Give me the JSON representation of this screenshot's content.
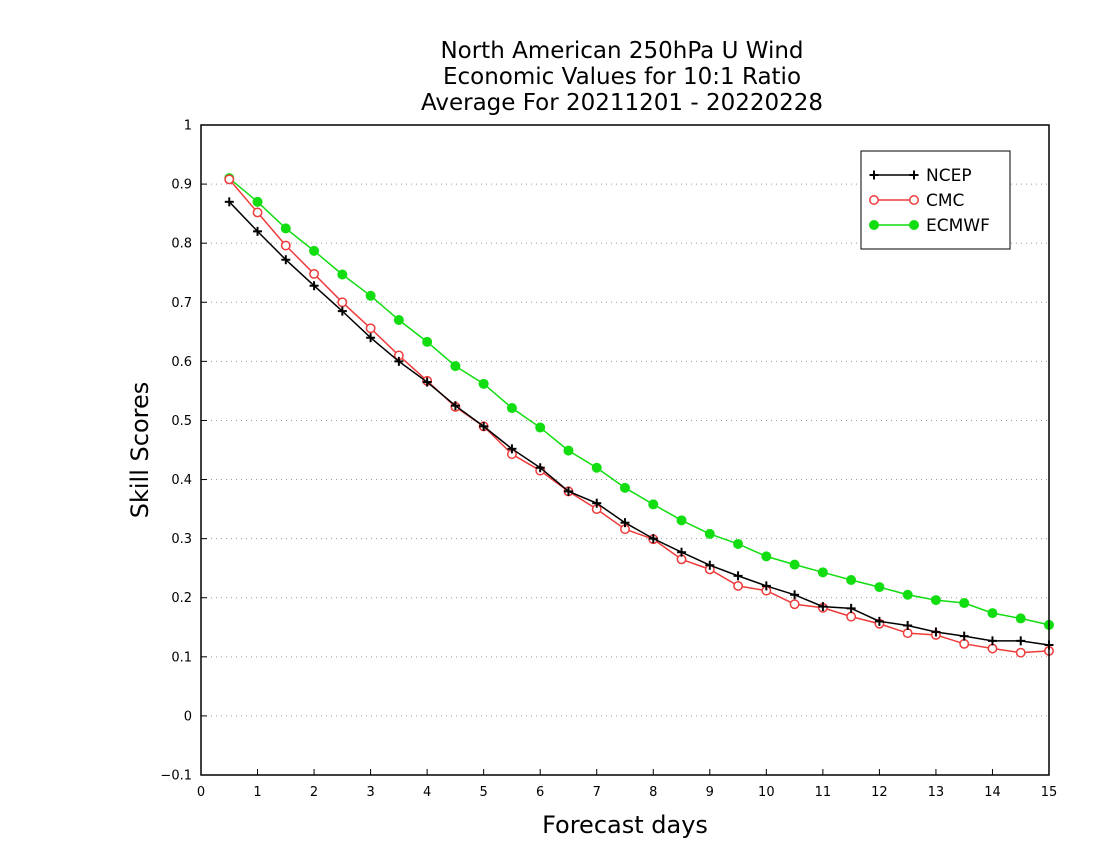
{
  "chart_data": {
    "type": "line",
    "title_lines": [
      "North American 250hPa U Wind",
      "Economic Values for 10:1 Ratio",
      "Average For 20211201 - 20220228"
    ],
    "xlabel": "Forecast days",
    "ylabel": "Skill Scores",
    "xlim": [
      0,
      15
    ],
    "ylim": [
      -0.1,
      1
    ],
    "xticks": [
      "0",
      "1",
      "2",
      "3",
      "4",
      "5",
      "6",
      "7",
      "8",
      "9",
      "10",
      "11",
      "12",
      "13",
      "14",
      "15"
    ],
    "yticks": [
      "−0.1",
      "0",
      "0.1",
      "0.2",
      "0.3",
      "0.4",
      "0.5",
      "0.6",
      "0.7",
      "0.8",
      "0.9",
      "1"
    ],
    "grid": "horizontal dotted",
    "legend_position": "top-right",
    "x": [
      0.5,
      1,
      1.5,
      2,
      2.5,
      3,
      3.5,
      4,
      4.5,
      5,
      5.5,
      6,
      6.5,
      7,
      7.5,
      8,
      8.5,
      9,
      9.5,
      10,
      10.5,
      11,
      11.5,
      12,
      12.5,
      13,
      13.5,
      14,
      14.5,
      15
    ],
    "series": [
      {
        "name": "NCEP",
        "color": "#000000",
        "marker": "plus",
        "values": [
          0.87,
          0.82,
          0.772,
          0.728,
          0.685,
          0.64,
          0.6,
          0.565,
          0.525,
          0.49,
          0.452,
          0.42,
          0.38,
          0.36,
          0.327,
          0.3,
          0.277,
          0.255,
          0.237,
          0.22,
          0.205,
          0.185,
          0.182,
          0.16,
          0.153,
          0.142,
          0.135,
          0.127,
          0.127,
          0.12
        ]
      },
      {
        "name": "CMC",
        "color": "#ee3b3b",
        "marker": "open-circle",
        "values": [
          0.908,
          0.852,
          0.796,
          0.748,
          0.7,
          0.656,
          0.61,
          0.567,
          0.523,
          0.49,
          0.443,
          0.415,
          0.38,
          0.35,
          0.316,
          0.299,
          0.265,
          0.248,
          0.22,
          0.212,
          0.189,
          0.183,
          0.168,
          0.156,
          0.14,
          0.137,
          0.122,
          0.114,
          0.107,
          0.11
        ]
      },
      {
        "name": "ECMWF",
        "color": "#11dd11",
        "marker": "filled-circle",
        "values": [
          0.91,
          0.87,
          0.825,
          0.787,
          0.747,
          0.711,
          0.67,
          0.633,
          0.592,
          0.562,
          0.521,
          0.488,
          0.449,
          0.42,
          0.386,
          0.358,
          0.331,
          0.308,
          0.291,
          0.27,
          0.256,
          0.243,
          0.23,
          0.218,
          0.205,
          0.196,
          0.191,
          0.174,
          0.165,
          0.154
        ]
      }
    ]
  }
}
